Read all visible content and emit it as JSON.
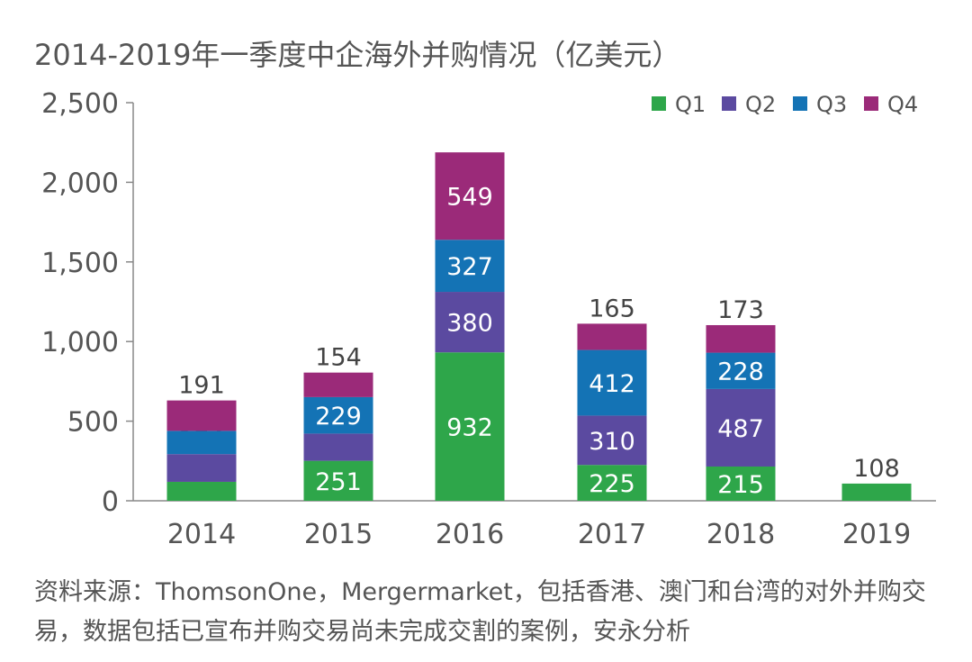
{
  "chart_data": {
    "type": "bar",
    "stacked": true,
    "title": "2014-2019年一季度中企海外并购情况（亿美元）",
    "categories": [
      "2014",
      "2015",
      "2016",
      "2017",
      "2018",
      "2019"
    ],
    "ylim": [
      0,
      2500
    ],
    "yticks": [
      0,
      500,
      1000,
      1500,
      2000,
      2500
    ],
    "ytick_labels": [
      "0",
      "500",
      "1,000",
      "1,500",
      "2,000",
      "2,500"
    ],
    "legend_position": "top-right",
    "series": [
      {
        "name": "Q1",
        "color": "#2ea64a",
        "values": [
          119,
          251,
          932,
          225,
          215,
          108
        ]
      },
      {
        "name": "Q2",
        "color": "#5b4aa0",
        "values": [
          174,
          171,
          380,
          310,
          487,
          null
        ]
      },
      {
        "name": "Q3",
        "color": "#1473b5",
        "values": [
          146,
          229,
          327,
          412,
          228,
          null
        ]
      },
      {
        "name": "Q4",
        "color": "#9b2a79",
        "values": [
          191,
          154,
          549,
          165,
          173,
          null
        ]
      }
    ]
  },
  "source": "资料来源：ThomsonOne，Mergermarket，包括香港、澳门和台湾的对外并购交易，数据包括已宣布并购交易尚未完成交割的案例，安永分析"
}
